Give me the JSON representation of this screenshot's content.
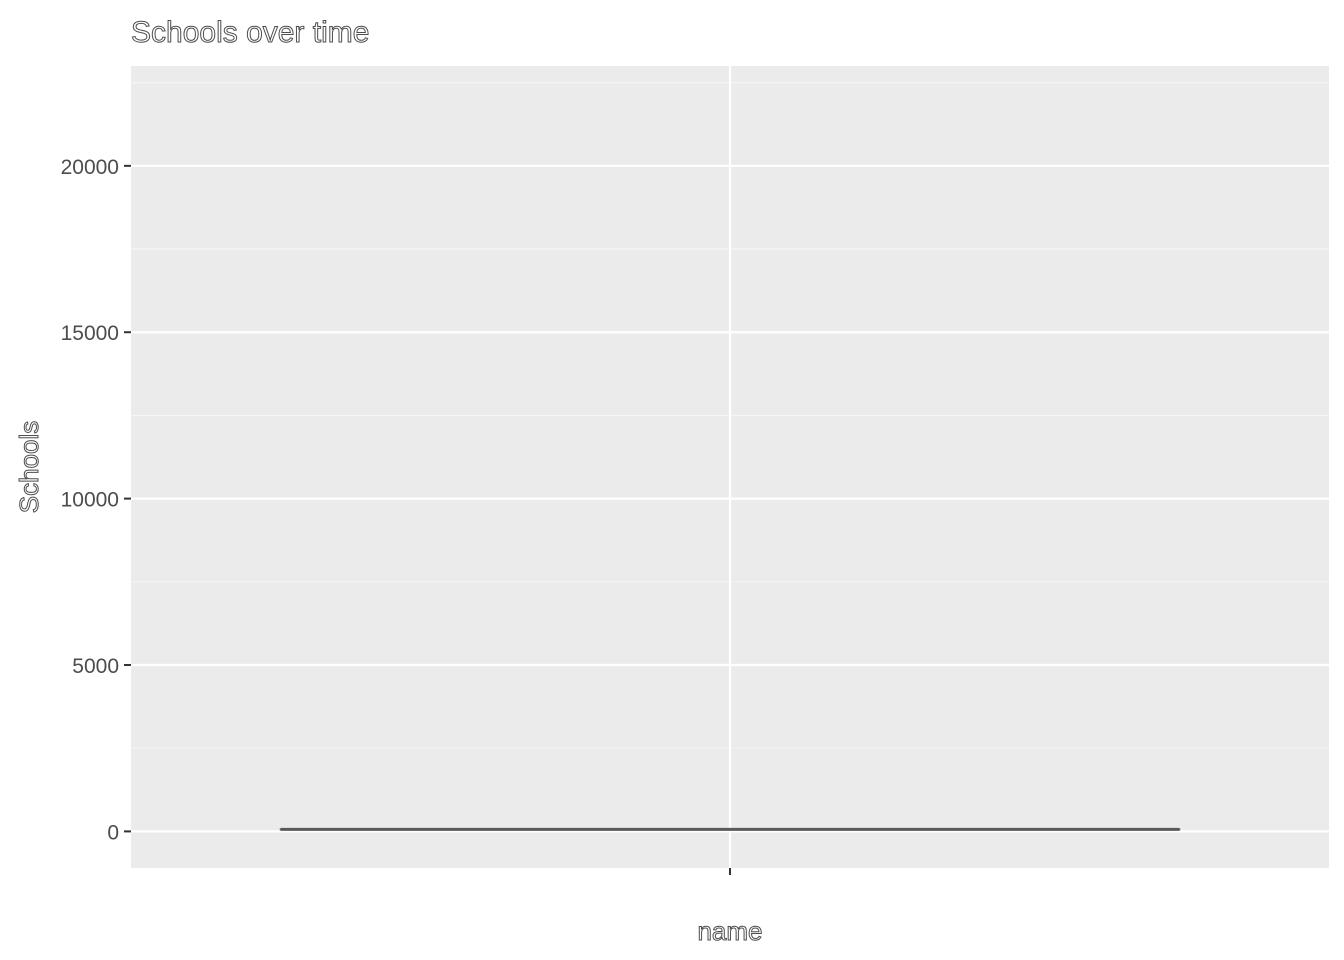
{
  "chart_data": {
    "type": "box",
    "title": "Schools over time",
    "xlabel": "name",
    "ylabel": "Schools",
    "categories": [
      ""
    ],
    "series": [
      {
        "values": [
          {
            "min": 60,
            "q1": 60,
            "median": 60,
            "q3": 60,
            "max": 60
          }
        ]
      }
    ],
    "yticks": [
      0,
      5000,
      10000,
      15000,
      20000
    ],
    "ytick_labels": [
      "0",
      "5000",
      "10000",
      "15000",
      "20000"
    ],
    "ylim": [
      -1100,
      23000
    ],
    "grid": true,
    "legend": "none",
    "colors": {
      "panel_background": "#ebebeb",
      "grid_major": "#ffffff",
      "grid_minor": "#f5f5f5",
      "box_line": "#595959",
      "tick": "#333333",
      "text": "#4d4d4d"
    }
  }
}
